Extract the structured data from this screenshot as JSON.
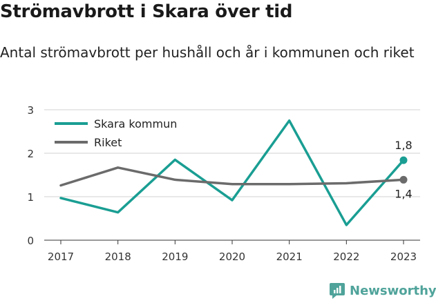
{
  "title": "Strömavbrott i Skara över tid",
  "subtitle": "Antal strömavbrott per hushåll och år i kommunen och riket",
  "brand": "Newsworthy",
  "chart_data": {
    "type": "line",
    "x": [
      "2017",
      "2018",
      "2019",
      "2020",
      "2021",
      "2022",
      "2023"
    ],
    "ylim": [
      0,
      3
    ],
    "yticks": [
      "0",
      "1",
      "2",
      "3"
    ],
    "grid": true,
    "legend_position": "top-left",
    "series": [
      {
        "name": "Skara kommun",
        "color": "#1a9e93",
        "values": [
          0.97,
          0.64,
          1.85,
          0.92,
          2.75,
          0.35,
          1.84
        ],
        "end_label": "1,8"
      },
      {
        "name": "Riket",
        "color": "#6b6b6b",
        "values": [
          1.26,
          1.67,
          1.39,
          1.29,
          1.29,
          1.31,
          1.39
        ],
        "end_label": "1,4"
      }
    ]
  }
}
